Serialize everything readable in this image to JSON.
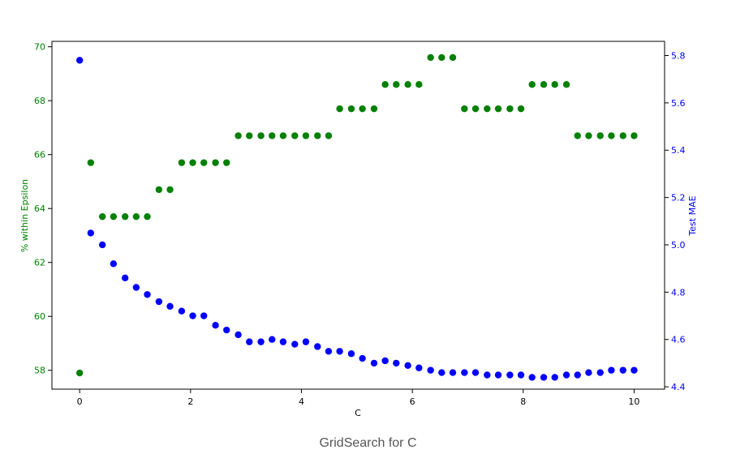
{
  "caption": "GridSearch for C",
  "colors": {
    "green": "#008000",
    "blue": "#0000ff",
    "axis": "#000000"
  },
  "chart_data": {
    "type": "scatter",
    "xlabel": "C",
    "xlim": [
      -0.5,
      10.55
    ],
    "xticks": [
      0,
      2,
      4,
      6,
      8,
      10
    ],
    "grid": false,
    "legend": "none",
    "left_axis": {
      "ylabel": "% within Epsilon",
      "ylim": [
        57.3,
        70.2
      ],
      "yticks": [
        58,
        60,
        62,
        64,
        66,
        68,
        70
      ],
      "color": "#008000"
    },
    "right_axis": {
      "ylabel": "Test MAE",
      "ylim": [
        4.39,
        5.86
      ],
      "yticks": [
        4.4,
        4.6,
        4.8,
        5.0,
        5.2,
        5.4,
        5.6,
        5.8
      ],
      "tick_format": "0.1",
      "color": "#0000ff"
    },
    "x": [
      0.0,
      0.2,
      0.41,
      0.61,
      0.82,
      1.02,
      1.22,
      1.43,
      1.63,
      1.84,
      2.04,
      2.24,
      2.45,
      2.65,
      2.86,
      3.06,
      3.27,
      3.47,
      3.67,
      3.88,
      4.08,
      4.29,
      4.49,
      4.69,
      4.9,
      5.1,
      5.31,
      5.51,
      5.71,
      5.92,
      6.12,
      6.33,
      6.53,
      6.73,
      6.94,
      7.14,
      7.35,
      7.55,
      7.76,
      7.96,
      8.16,
      8.37,
      8.57,
      8.78,
      8.98,
      9.18,
      9.39,
      9.59,
      9.8,
      10.0
    ],
    "series": [
      {
        "axis": "left",
        "color": "#008000",
        "values": [
          57.9,
          65.7,
          63.7,
          63.7,
          63.7,
          63.7,
          63.7,
          64.7,
          64.7,
          65.7,
          65.7,
          65.7,
          65.7,
          65.7,
          66.7,
          66.7,
          66.7,
          66.7,
          66.7,
          66.7,
          66.7,
          66.7,
          66.7,
          67.7,
          67.7,
          67.7,
          67.7,
          68.6,
          68.6,
          68.6,
          68.6,
          69.6,
          69.6,
          69.6,
          67.7,
          67.7,
          67.7,
          67.7,
          67.7,
          67.7,
          68.6,
          68.6,
          68.6,
          68.6,
          66.7,
          66.7,
          66.7,
          66.7,
          66.7,
          66.7
        ]
      },
      {
        "axis": "right",
        "color": "#0000ff",
        "values": [
          5.78,
          5.05,
          5.0,
          4.92,
          4.86,
          4.82,
          4.79,
          4.76,
          4.74,
          4.72,
          4.7,
          4.7,
          4.66,
          4.64,
          4.62,
          4.59,
          4.59,
          4.6,
          4.59,
          4.58,
          4.59,
          4.57,
          4.55,
          4.55,
          4.54,
          4.52,
          4.5,
          4.51,
          4.5,
          4.49,
          4.48,
          4.47,
          4.46,
          4.46,
          4.46,
          4.46,
          4.45,
          4.45,
          4.45,
          4.45,
          4.44,
          4.44,
          4.44,
          4.45,
          4.45,
          4.46,
          4.46,
          4.47,
          4.47,
          4.47
        ]
      }
    ]
  }
}
